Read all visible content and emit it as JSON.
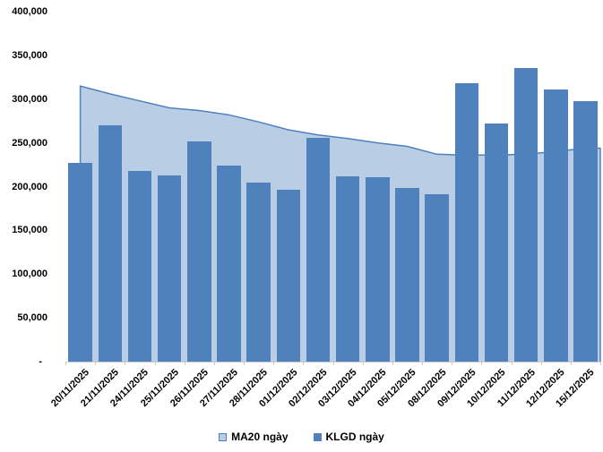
{
  "chart_data": {
    "type": "combo-bar-area",
    "title": "",
    "xlabel": "",
    "ylabel": "",
    "categories": [
      "20/11/2025",
      "21/11/2025",
      "24/11/2025",
      "25/11/2025",
      "26/11/2025",
      "27/11/2025",
      "28/11/2025",
      "01/12/2025",
      "02/12/2025",
      "03/12/2025",
      "04/12/2025",
      "05/12/2025",
      "08/12/2025",
      "09/12/2025",
      "10/12/2025",
      "11/12/2025",
      "12/12/2025",
      "15/12/2025"
    ],
    "series": [
      {
        "name": "MA20 ngày",
        "type": "area",
        "fill": "#B9CDE5",
        "stroke": "#4F81BD",
        "values": [
          315000,
          306000,
          298000,
          290000,
          287000,
          282000,
          274000,
          265000,
          259000,
          255000,
          250000,
          246000,
          237000,
          236000,
          236000,
          237000,
          240000,
          244000
        ]
      },
      {
        "name": "KLGD ngày",
        "type": "bar",
        "fill": "#4F81BD",
        "values": [
          227000,
          270000,
          218000,
          213000,
          252000,
          224000,
          205000,
          196000,
          256000,
          212000,
          211000,
          199000,
          191000,
          318000,
          272000,
          336000,
          311000,
          298000
        ]
      }
    ],
    "ylim": [
      0,
      400000
    ],
    "ytick_step": 50000,
    "ytick_labels": [
      "-",
      "50,000",
      "100,000",
      "150,000",
      "200,000",
      "250,000",
      "300,000",
      "350,000",
      "400,000"
    ],
    "grid": false,
    "legend_position": "bottom",
    "axis_color": "#C9C9C9",
    "text_color": "#000000",
    "background": "#FFFFFF"
  }
}
